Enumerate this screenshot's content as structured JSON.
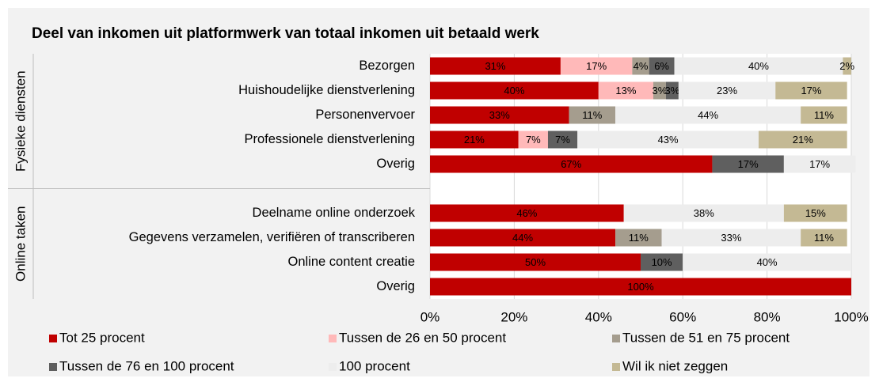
{
  "chart_data": {
    "type": "stacked-bar-horizontal",
    "title": "Deel van inkomen uit platformwerk van totaal inkomen uit betaald werk",
    "group_labels": [
      "Fysieke diensten",
      "Online taken"
    ],
    "categories": [
      "Bezorgen",
      "Huishoudelijke dienstverlening",
      "Personenvervoer",
      "Professionele dienstverlening",
      "Overig",
      null,
      "Deelname online onderzoek",
      "Gegevens verzamelen, verifiëren of transcriberen",
      "Online content creatie",
      "Overig"
    ],
    "xlim": [
      0,
      100
    ],
    "xticks": [
      {
        "value": 0,
        "label": "0%"
      },
      {
        "value": 20,
        "label": "20%"
      },
      {
        "value": 40,
        "label": "40%"
      },
      {
        "value": 60,
        "label": "60%"
      },
      {
        "value": 80,
        "label": "80%"
      },
      {
        "value": 100,
        "label": "100%"
      }
    ],
    "grid": true,
    "series": [
      {
        "name": "Tot 25 procent",
        "color": "#c00000",
        "values": [
          31,
          40,
          33,
          21,
          67,
          null,
          46,
          44,
          50,
          100
        ],
        "value_labels": [
          "31%",
          "40%",
          "33%",
          "21%",
          "67%",
          null,
          "46%",
          "44%",
          "50%",
          "100%"
        ]
      },
      {
        "name": "Tussen de 26 en 50 procent",
        "color": "#ffb9b9",
        "values": [
          17,
          13,
          null,
          7,
          null,
          null,
          null,
          null,
          null,
          null
        ],
        "value_labels": [
          "17%",
          "13%",
          null,
          "7%",
          null,
          null,
          null,
          null,
          null,
          null
        ]
      },
      {
        "name": "Tussen de 51 en 75 procent",
        "color": "#a59d8e",
        "values": [
          4,
          3,
          11,
          null,
          null,
          null,
          null,
          11,
          null,
          null
        ],
        "value_labels": [
          "4%",
          "3%",
          "11%",
          null,
          null,
          null,
          null,
          "11%",
          null,
          null
        ]
      },
      {
        "name": "Tussen de 76 en 100 procent",
        "color": "#5f5f5f",
        "values": [
          6,
          3,
          null,
          7,
          17,
          null,
          null,
          null,
          10,
          null
        ],
        "value_labels": [
          "6%",
          "3%",
          null,
          "7%",
          "17%",
          null,
          null,
          null,
          "10%",
          null
        ]
      },
      {
        "name": "100 procent",
        "color": "#ededed",
        "values": [
          40,
          23,
          44,
          43,
          17,
          null,
          38,
          33,
          40,
          null
        ],
        "value_labels": [
          "40%",
          "23%",
          "44%",
          "43%",
          "17%",
          null,
          "38%",
          "33%",
          "40%",
          null
        ]
      },
      {
        "name": "Wil ik niet zeggen",
        "color": "#c4b994",
        "values": [
          2,
          17,
          11,
          21,
          null,
          null,
          15,
          11,
          null,
          null
        ],
        "value_labels": [
          "2%",
          "17%",
          "11%",
          "21%",
          null,
          null,
          "15%",
          "11%",
          null,
          null
        ]
      }
    ]
  }
}
